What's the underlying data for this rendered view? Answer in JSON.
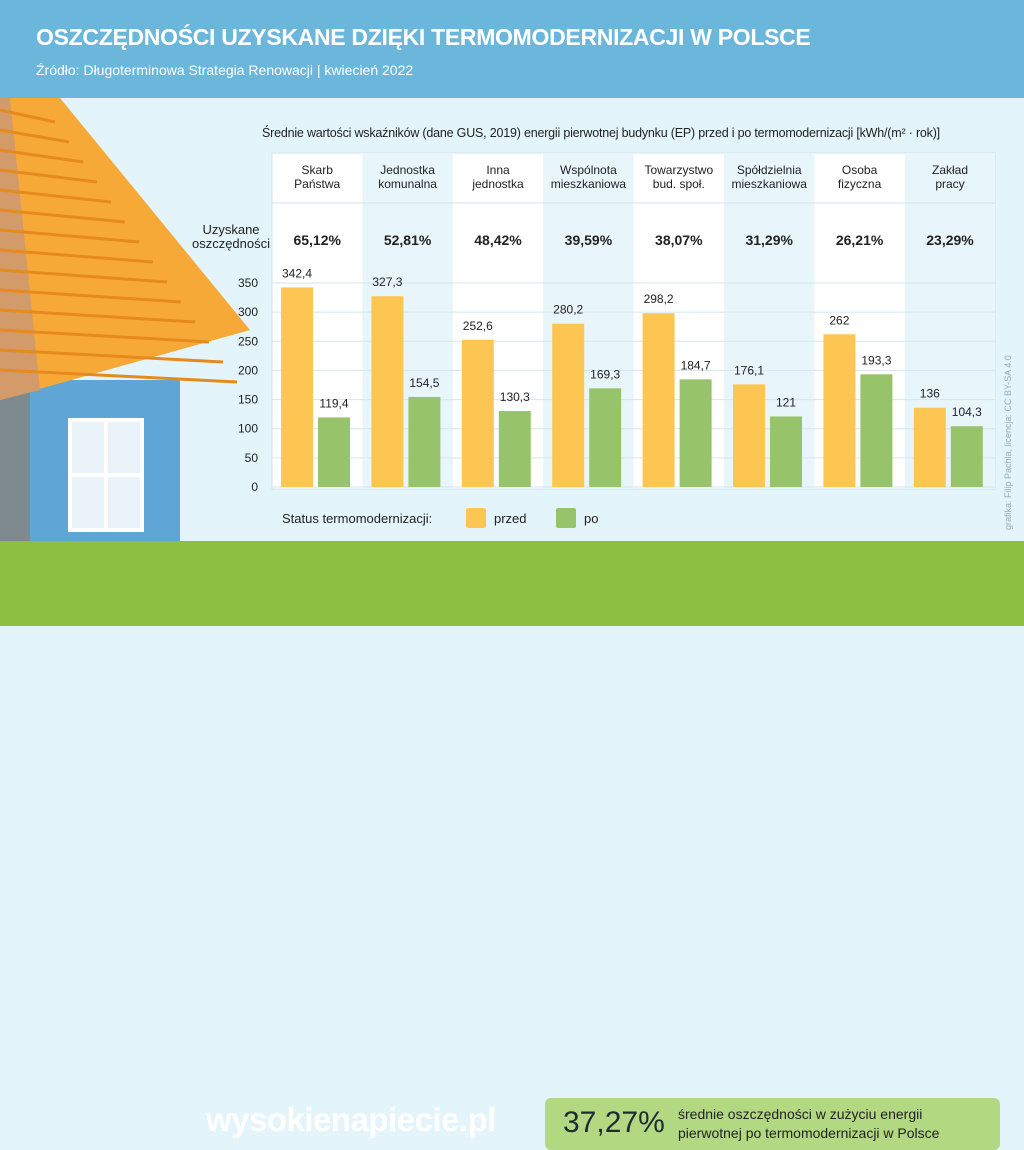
{
  "header": {
    "title": "OSZCZĘDNOŚCI UZYSKANE DZIĘKI TERMOMODERNIZACJI W POLSCE",
    "source": "Źródło: Długoterminowa Strategia Renowacji | kwiecień 2022"
  },
  "chart_data": {
    "type": "bar",
    "title": "Średnie wartości wskaźników (dane GUS, 2019) energii pierwotnej budynku (EP) przed i po termomodernizacji [kWh/(m² · rok)]",
    "categories": [
      "Skarb\nPaństwa",
      "Jednostka\nkomunalna",
      "Inna\njednostka",
      "Wspólnota\nmieszkaniowa",
      "Towarzystwo\nbud. społ.",
      "Spółdzielnia\nmieszkaniowa",
      "Osoba\nfizyczna",
      "Zakład\npracy"
    ],
    "savings_label": "Uzyskane\noszczędności",
    "savings": [
      "65,12%",
      "52,81%",
      "48,42%",
      "39,59%",
      "38,07%",
      "31,29%",
      "26,21%",
      "23,29%"
    ],
    "series": [
      {
        "name": "przed",
        "color": "#fdc652",
        "values": [
          342.4,
          327.3,
          252.6,
          280.2,
          298.2,
          176.1,
          262,
          136
        ],
        "labels": [
          "342,4",
          "327,3",
          "252,6",
          "280,2",
          "298,2",
          "176,1",
          "262",
          "136"
        ]
      },
      {
        "name": "po",
        "color": "#97c46a",
        "values": [
          119.4,
          154.5,
          130.3,
          169.3,
          184.7,
          121,
          193.3,
          104.3
        ],
        "labels": [
          "119,4",
          "154,5",
          "130,3",
          "169,3",
          "184,7",
          "121",
          "193,3",
          "104,3"
        ]
      }
    ],
    "yticks": [
      "0",
      "50",
      "100",
      "150",
      "200",
      "250",
      "300",
      "350"
    ],
    "ylim": [
      0,
      350
    ],
    "grid": true,
    "legend_title": "Status termomodernizacji:",
    "legend_placement": "bottom"
  },
  "footer": {
    "logo": "wysokienapiecie.pl",
    "avg": "37,27%",
    "avg_text": "średnie oszczędności w zużyciu energii\npierwotnej po termomodernizacji w Polsce",
    "credit": "grafika: Filip Pachla, licencja: CC BY-SA 4.0"
  }
}
